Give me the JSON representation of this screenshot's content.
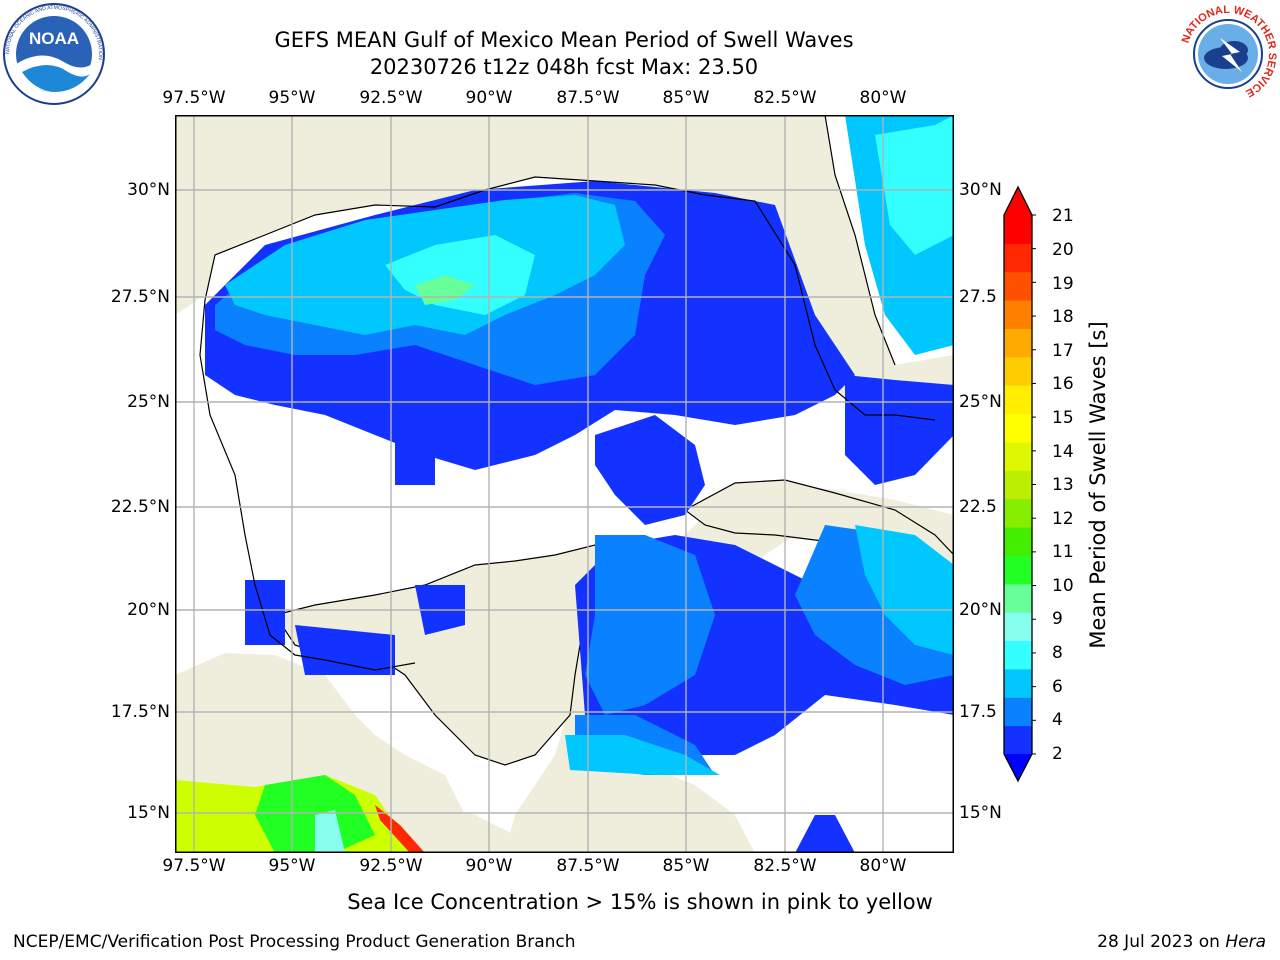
{
  "title_line1": "GEFS MEAN Gulf of Mexico Mean Period of Swell Waves",
  "title_line2": "20230726 t12z 048h fcst   Max: 23.50",
  "map": {
    "lon_ticks": [
      "97.5°W",
      "95°W",
      "92.5°W",
      "90°W",
      "87.5°W",
      "85°W",
      "82.5°W",
      "80°W"
    ],
    "lat_ticks": [
      "30°N",
      "27.5°N",
      "25°N",
      "22.5°N",
      "20°N",
      "17.5°N",
      "15°N"
    ],
    "lat_ticks_right": [
      "30°N",
      "27.5",
      "25°N",
      "22.5",
      "20°N",
      "17.5",
      "15°N"
    ],
    "extent": {
      "lon_min": -98,
      "lon_max": -78.2,
      "lat_min": 14,
      "lat_max": 31.6
    },
    "land_color": "#efeedc",
    "ocean_no_data_color": "#ffffff"
  },
  "colorbar": {
    "title": "Mean Period of Swell Waves [s]",
    "ticks": [
      "2",
      "4",
      "6",
      "8",
      "9",
      "10",
      "11",
      "12",
      "13",
      "14",
      "15",
      "16",
      "17",
      "18",
      "19",
      "20",
      "21"
    ],
    "colors": [
      "#1432ff",
      "#0a82ff",
      "#00c8ff",
      "#33ffff",
      "#88ffee",
      "#66ff99",
      "#22ff22",
      "#44ee00",
      "#88ee00",
      "#bbee00",
      "#ddf800",
      "#ffff00",
      "#ffee00",
      "#ffcc00",
      "#ffaa00",
      "#ff8000",
      "#ff5000",
      "#ff2800",
      "#ff0000"
    ],
    "under_color": "#0000ff",
    "over_color": "#ff0000"
  },
  "caption": "Sea Ice Concentration > 15% is shown in pink to yellow",
  "footer_left": "NCEP/EMC/Verification Post Processing Product Generation Branch",
  "footer_right_prefix": "28 Jul 2023 on ",
  "footer_right_host": "Hera",
  "logos": {
    "left_text": "NOAA",
    "left_ring_text": "NATIONAL OCEANIC AND ATMOSPHERIC ADMINISTRATION",
    "right_ring_text": "NATIONAL WEATHER SERVICE"
  }
}
